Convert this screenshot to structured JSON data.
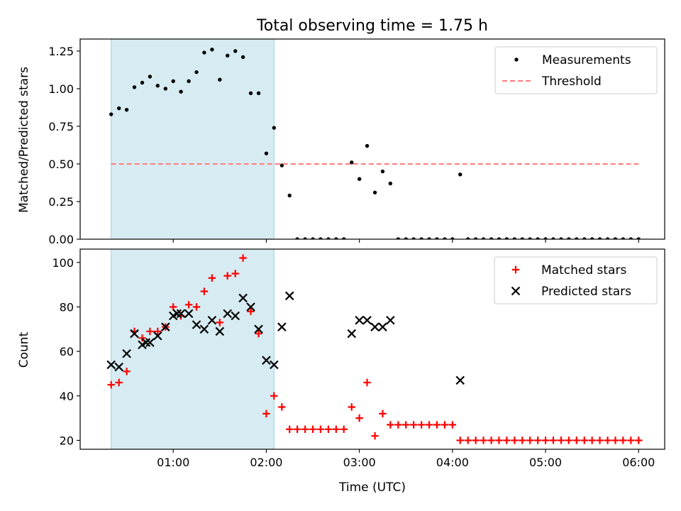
{
  "chart_data": [
    {
      "type": "scatter",
      "title": "Total observing time = 1.75 h",
      "xlabel": "",
      "ylabel": "Matched/Predicted stars",
      "xlim": [
        0.0,
        6.28
      ],
      "ylim": [
        0.0,
        1.33
      ],
      "xticks": [
        1,
        2,
        3,
        4,
        5,
        6
      ],
      "yticks": [
        0.0,
        0.25,
        0.5,
        0.75,
        1.0,
        1.25
      ],
      "ytick_labels": [
        "0.00",
        "0.25",
        "0.50",
        "0.75",
        "1.00",
        "1.25"
      ],
      "shaded_span": [
        0.333,
        2.083
      ],
      "legend": {
        "position": "upper right",
        "entries": [
          "Measurements",
          "Threshold"
        ]
      },
      "series": [
        {
          "name": "Measurements",
          "marker": "dot",
          "color": "#000000",
          "x": [
            0.333,
            0.417,
            0.5,
            0.583,
            0.667,
            0.75,
            0.833,
            0.917,
            1.0,
            1.083,
            1.167,
            1.25,
            1.333,
            1.417,
            1.5,
            1.583,
            1.667,
            1.75,
            1.833,
            1.917,
            2.0,
            2.083,
            2.167,
            2.25,
            2.333,
            2.417,
            2.5,
            2.583,
            2.667,
            2.75,
            2.833,
            2.917,
            3.0,
            3.083,
            3.167,
            3.25,
            3.333,
            3.417,
            3.5,
            3.583,
            3.667,
            3.75,
            3.833,
            3.917,
            4.0,
            4.083,
            4.167,
            4.25,
            4.333,
            4.417,
            4.5,
            4.583,
            4.667,
            4.75,
            4.833,
            4.917,
            5.0,
            5.083,
            5.167,
            5.25,
            5.333,
            5.417,
            5.5,
            5.583,
            5.667,
            5.75,
            5.833,
            5.917,
            6.0
          ],
          "y": [
            0.83,
            0.87,
            0.86,
            1.01,
            1.04,
            1.08,
            1.02,
            1.0,
            1.05,
            0.98,
            1.05,
            1.11,
            1.24,
            1.26,
            1.06,
            1.22,
            1.25,
            1.21,
            0.97,
            0.97,
            0.57,
            0.74,
            0.49,
            0.29,
            0.0,
            0.0,
            0.0,
            0.0,
            0.0,
            0.0,
            0.0,
            0.51,
            0.4,
            0.62,
            0.31,
            0.45,
            0.37,
            0.0,
            0.0,
            0.0,
            0.0,
            0.0,
            0.0,
            0.0,
            0.0,
            0.43,
            0.0,
            0.0,
            0.0,
            0.0,
            0.0,
            0.0,
            0.0,
            0.0,
            0.0,
            0.0,
            0.0,
            0.0,
            0.0,
            0.0,
            0.0,
            0.0,
            0.0,
            0.0,
            0.0,
            0.0,
            0.0,
            0.0,
            0.0
          ]
        },
        {
          "name": "Threshold",
          "marker": "dashed-line",
          "color": "#ff7b7b",
          "x": [
            0.333,
            6.0
          ],
          "y": [
            0.5,
            0.5
          ]
        }
      ]
    },
    {
      "type": "scatter",
      "title": "",
      "xlabel": "Time (UTC)",
      "ylabel": "Count",
      "xlim": [
        0.0,
        6.28
      ],
      "ylim": [
        16,
        106
      ],
      "xticks": [
        1,
        2,
        3,
        4,
        5,
        6
      ],
      "xtick_labels": [
        "01:00",
        "02:00",
        "03:00",
        "04:00",
        "05:00",
        "06:00"
      ],
      "yticks": [
        20,
        40,
        60,
        80,
        100
      ],
      "ytick_labels": [
        "20",
        "40",
        "60",
        "80",
        "100"
      ],
      "shaded_span": [
        0.333,
        2.083
      ],
      "legend": {
        "position": "upper right",
        "entries": [
          "Matched stars",
          "Predicted stars"
        ]
      },
      "series": [
        {
          "name": "Matched stars",
          "marker": "plus",
          "color": "#ff0000",
          "x": [
            0.333,
            0.417,
            0.5,
            0.583,
            0.667,
            0.75,
            0.833,
            0.917,
            1.0,
            1.083,
            1.167,
            1.25,
            1.333,
            1.417,
            1.5,
            1.583,
            1.667,
            1.75,
            1.833,
            1.917,
            2.0,
            2.083,
            2.167,
            2.25,
            2.333,
            2.417,
            2.5,
            2.583,
            2.667,
            2.75,
            2.833,
            2.917,
            3.0,
            3.083,
            3.167,
            3.25,
            3.333,
            3.417,
            3.5,
            3.583,
            3.667,
            3.75,
            3.833,
            3.917,
            4.0,
            4.083,
            4.167,
            4.25,
            4.333,
            4.417,
            4.5,
            4.583,
            4.667,
            4.75,
            4.833,
            4.917,
            5.0,
            5.083,
            5.167,
            5.25,
            5.333,
            5.417,
            5.5,
            5.583,
            5.667,
            5.75,
            5.833,
            5.917,
            6.0
          ],
          "y": [
            45,
            46,
            51,
            69,
            66,
            69,
            69,
            71,
            80,
            76,
            81,
            80,
            87,
            93,
            73,
            94,
            95,
            102,
            78,
            68,
            32,
            40,
            35,
            25,
            25,
            25,
            25,
            25,
            25,
            25,
            25,
            35,
            30,
            46,
            22,
            32,
            27,
            27,
            27,
            27,
            27,
            27,
            27,
            27,
            27,
            20,
            20,
            20,
            20,
            20,
            20,
            20,
            20,
            20,
            20,
            20,
            20,
            20,
            20,
            20,
            20,
            20,
            20,
            20,
            20,
            20,
            20,
            20,
            20
          ]
        },
        {
          "name": "Predicted stars",
          "marker": "x",
          "color": "#000000",
          "x": [
            0.333,
            0.417,
            0.5,
            0.583,
            0.667,
            0.708,
            0.75,
            0.833,
            0.917,
            1.0,
            1.042,
            1.083,
            1.167,
            1.25,
            1.333,
            1.417,
            1.5,
            1.583,
            1.667,
            1.75,
            1.833,
            1.917,
            2.0,
            2.083,
            2.167,
            2.25,
            2.917,
            3.0,
            3.083,
            3.167,
            3.25,
            3.333,
            4.083
          ],
          "y": [
            54,
            53,
            59,
            68,
            63,
            64,
            64,
            67,
            71,
            76,
            77,
            77,
            77,
            72,
            70,
            74,
            69,
            77,
            76,
            84,
            80,
            70,
            56,
            54,
            71,
            85,
            68,
            74,
            74,
            71,
            71,
            74,
            47
          ]
        }
      ]
    }
  ]
}
